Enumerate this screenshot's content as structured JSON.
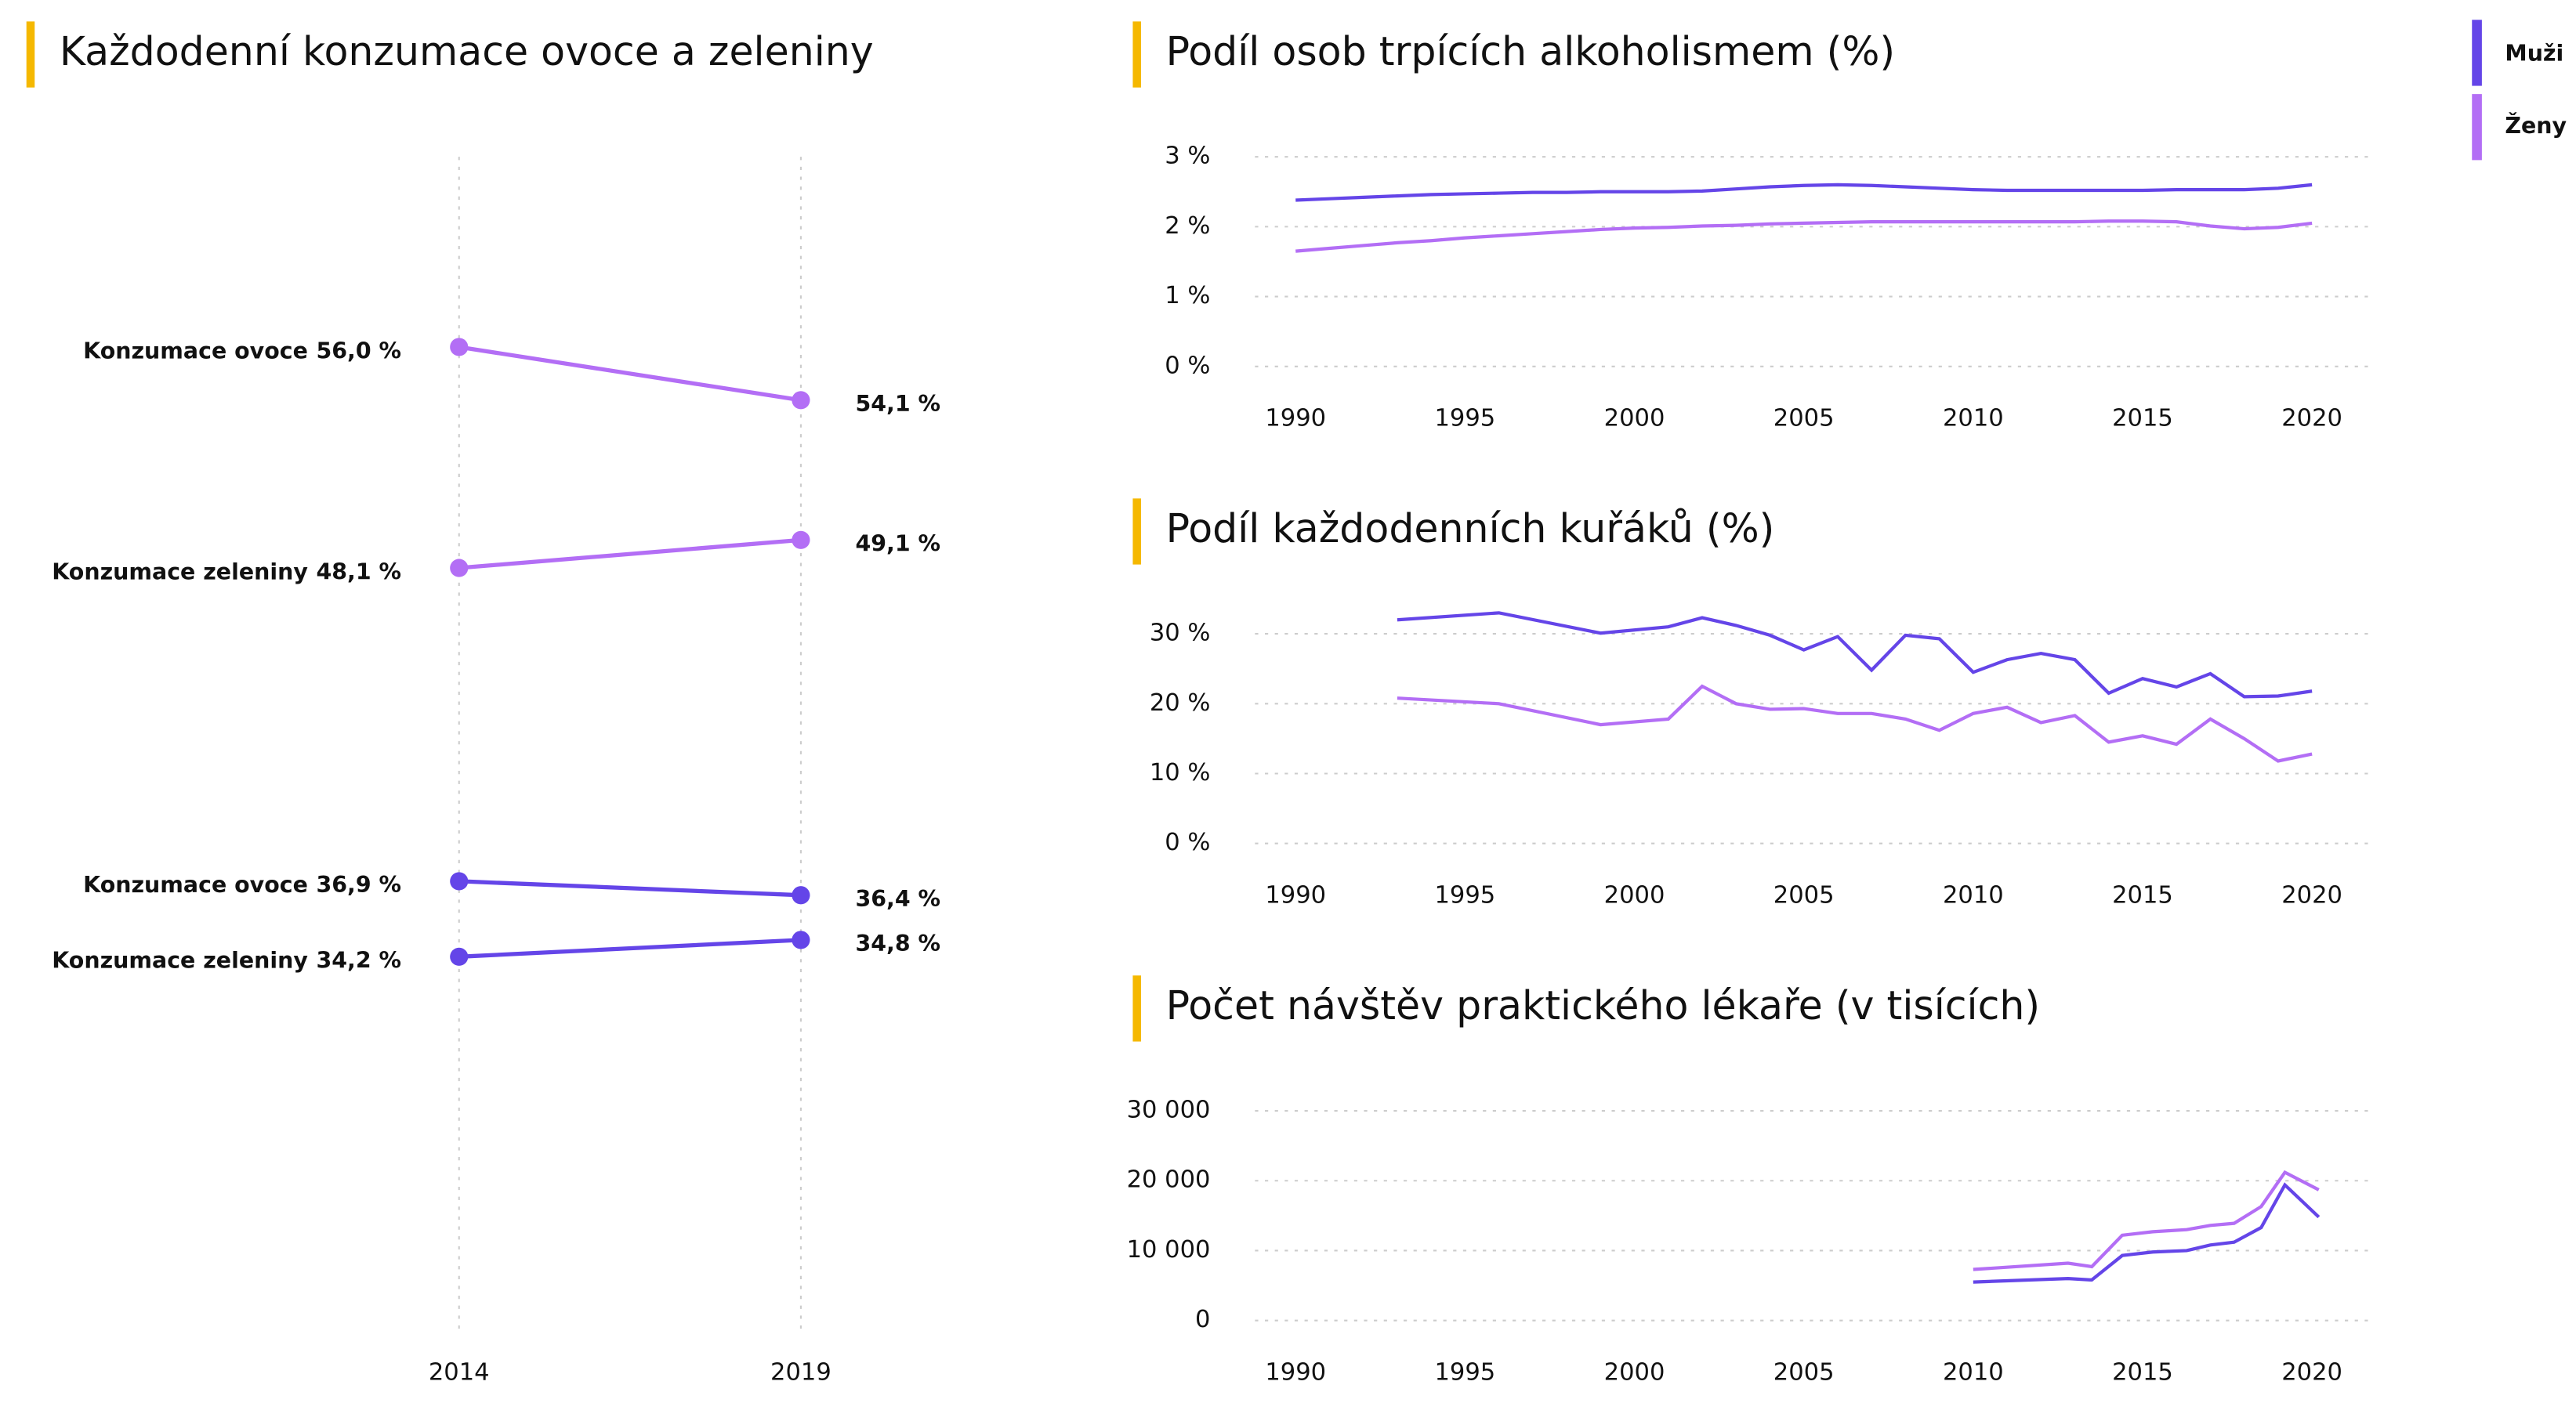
{
  "chart_data": [
    {
      "type": "slope",
      "title": "Každodenní konzumace ovoce a zeleniny",
      "categories": [
        "2014",
        "2019"
      ],
      "ylim": [
        20.9,
        62.8
      ],
      "series": [
        {
          "name": "Konzumace ovoce",
          "color": "#b36ef5",
          "values": [
            56.0,
            54.1
          ],
          "value_labels": [
            "56,0 %",
            "54,1 %"
          ]
        },
        {
          "name": "Konzumace zeleniny",
          "color": "#b36ef5",
          "values": [
            48.1,
            49.1
          ],
          "value_labels": [
            "48,1 %",
            "49,1 %"
          ]
        },
        {
          "name": "Konzumace ovoce",
          "color": "#6445e8",
          "values": [
            36.9,
            36.4
          ],
          "value_labels": [
            "36,9 %",
            "36,4 %"
          ]
        },
        {
          "name": "Konzumace zeleniny",
          "color": "#6445e8",
          "values": [
            34.2,
            34.8
          ],
          "value_labels": [
            "34,2 %",
            "34,8 %"
          ]
        }
      ]
    },
    {
      "type": "line",
      "title": "Podíl osob trpících alkoholismem (%)",
      "legend": "top-right",
      "x": [
        1990,
        1991,
        1992,
        1993,
        1994,
        1995,
        1996,
        1997,
        1998,
        1999,
        2000,
        2001,
        2002,
        2003,
        2004,
        2005,
        2006,
        2007,
        2008,
        2009,
        2010,
        2011,
        2012,
        2013,
        2014,
        2015,
        2016,
        2017,
        2018,
        2019,
        2020
      ],
      "xlim": [
        1988.8,
        2021.7
      ],
      "xticks": [
        1990,
        1995,
        2000,
        2005,
        2010,
        2015,
        2020
      ],
      "ylim": [
        0,
        3
      ],
      "yticks": [
        {
          "value": 0,
          "label": "0 %"
        },
        {
          "value": 1,
          "label": "1 %"
        },
        {
          "value": 2,
          "label": "2 %"
        },
        {
          "value": 3,
          "label": "3 %"
        }
      ],
      "series": [
        {
          "name": "Muži",
          "color": "#6445e8",
          "values": [
            2.38,
            2.4,
            2.42,
            2.44,
            2.46,
            2.47,
            2.48,
            2.49,
            2.49,
            2.5,
            2.5,
            2.5,
            2.51,
            2.54,
            2.57,
            2.59,
            2.6,
            2.59,
            2.57,
            2.55,
            2.53,
            2.52,
            2.52,
            2.52,
            2.52,
            2.52,
            2.53,
            2.53,
            2.53,
            2.55,
            2.6
          ]
        },
        {
          "name": "Ženy",
          "color": "#b36ef5",
          "values": [
            1.65,
            1.69,
            1.73,
            1.77,
            1.8,
            1.84,
            1.87,
            1.9,
            1.93,
            1.96,
            1.98,
            1.99,
            2.01,
            2.02,
            2.04,
            2.05,
            2.06,
            2.07,
            2.07,
            2.07,
            2.07,
            2.07,
            2.07,
            2.07,
            2.08,
            2.08,
            2.07,
            2.01,
            1.97,
            1.99,
            2.05
          ]
        }
      ]
    },
    {
      "type": "line",
      "title": "Podíl každodenních kuřáků (%)",
      "x": [
        1993,
        1996,
        1999,
        2001,
        2002,
        2003,
        2004,
        2005,
        2006,
        2007,
        2008,
        2009,
        2010,
        2011,
        2012,
        2013,
        2014,
        2015,
        2016,
        2017,
        2018,
        2019,
        2020
      ],
      "xlim": [
        1988.8,
        2021.7
      ],
      "xticks": [
        1990,
        1995,
        2000,
        2005,
        2010,
        2015,
        2020
      ],
      "ylim": [
        0,
        30
      ],
      "yticks": [
        {
          "value": 0,
          "label": "0 %"
        },
        {
          "value": 10,
          "label": "10 %"
        },
        {
          "value": 20,
          "label": "20 %"
        },
        {
          "value": 30,
          "label": "30 %"
        }
      ],
      "series": [
        {
          "name": "Muži",
          "color": "#6445e8",
          "values": [
            32,
            33,
            30.1,
            31,
            32.3,
            31.2,
            29.8,
            27.7,
            29.6,
            24.8,
            29.8,
            29.3,
            24.5,
            26.3,
            27.2,
            26.3,
            21.5,
            23.6,
            22.4,
            24.3,
            21,
            21.1,
            21.8
          ]
        },
        {
          "name": "Ženy",
          "color": "#b36ef5",
          "values": [
            20.8,
            20,
            17,
            17.8,
            22.5,
            20,
            19.2,
            19.3,
            18.6,
            18.6,
            17.8,
            16.2,
            18.6,
            19.5,
            17.3,
            18.3,
            14.5,
            15.4,
            14.2,
            17.8,
            15,
            11.8,
            12.8
          ]
        }
      ]
    },
    {
      "type": "line",
      "title": "Počet návštěv praktického lékaře (v tisících)",
      "x": [
        2010,
        2012.8,
        2013.5,
        2014.4,
        2015.3,
        2016.3,
        2017,
        2017.7,
        2018.5,
        2019.2,
        2020.2
      ],
      "xlim": [
        1988.8,
        2021.7
      ],
      "xticks": [
        1990,
        1995,
        2000,
        2005,
        2010,
        2015,
        2020
      ],
      "ylim": [
        0,
        30000
      ],
      "yticks": [
        0,
        {
          "value": 10000,
          "label": "10 000"
        },
        {
          "value": 20000,
          "label": "20 000"
        },
        {
          "value": 30000,
          "label": "30 000"
        }
      ],
      "series": [
        {
          "name": "Muži",
          "color": "#6445e8",
          "values": [
            5500,
            6000,
            5800,
            9300,
            9800,
            10000,
            10800,
            11200,
            13300,
            19400,
            14800
          ]
        },
        {
          "name": "Ženy",
          "color": "#b36ef5",
          "values": [
            7300,
            8200,
            7700,
            12200,
            12700,
            13000,
            13600,
            13900,
            16300,
            21200,
            18700
          ]
        }
      ]
    }
  ]
}
